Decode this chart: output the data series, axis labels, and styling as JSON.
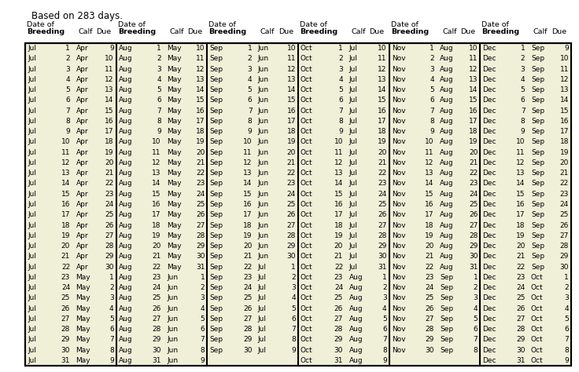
{
  "title": "Based on 283 days.",
  "bg_color": "#ffffff",
  "table_bg": "#f0f0d8",
  "border_color": "#000000",
  "text_color": "#000000",
  "font_size": 6.5,
  "header_font_size": 6.8,
  "title_font_size": 8.5,
  "sections": [
    {
      "breeding_month": "Jul",
      "rows": [
        [
          "Jul",
          "1",
          "Apr",
          "9"
        ],
        [
          "Jul",
          "2",
          "Apr",
          "10"
        ],
        [
          "Jul",
          "3",
          "Apr",
          "11"
        ],
        [
          "Jul",
          "4",
          "Apr",
          "12"
        ],
        [
          "Jul",
          "5",
          "Apr",
          "13"
        ],
        [
          "Jul",
          "6",
          "Apr",
          "14"
        ],
        [
          "Jul",
          "7",
          "Apr",
          "15"
        ],
        [
          "Jul",
          "8",
          "Apr",
          "16"
        ],
        [
          "Jul",
          "9",
          "Apr",
          "17"
        ],
        [
          "Jul",
          "10",
          "Apr",
          "18"
        ],
        [
          "Jul",
          "11",
          "Apr",
          "19"
        ],
        [
          "Jul",
          "12",
          "Apr",
          "20"
        ],
        [
          "Jul",
          "13",
          "Apr",
          "21"
        ],
        [
          "Jul",
          "14",
          "Apr",
          "22"
        ],
        [
          "Jul",
          "15",
          "Apr",
          "23"
        ],
        [
          "Jul",
          "16",
          "Apr",
          "24"
        ],
        [
          "Jul",
          "17",
          "Apr",
          "25"
        ],
        [
          "Jul",
          "18",
          "Apr",
          "26"
        ],
        [
          "Jul",
          "19",
          "Apr",
          "27"
        ],
        [
          "Jul",
          "20",
          "Apr",
          "28"
        ],
        [
          "Jul",
          "21",
          "Apr",
          "29"
        ],
        [
          "Jul",
          "22",
          "Apr",
          "30"
        ],
        [
          "Jul",
          "23",
          "May",
          "1"
        ],
        [
          "Jul",
          "24",
          "May",
          "2"
        ],
        [
          "Jul",
          "25",
          "May",
          "3"
        ],
        [
          "Jul",
          "26",
          "May",
          "4"
        ],
        [
          "Jul",
          "27",
          "May",
          "5"
        ],
        [
          "Jul",
          "28",
          "May",
          "6"
        ],
        [
          "Jul",
          "29",
          "May",
          "7"
        ],
        [
          "Jul",
          "30",
          "May",
          "8"
        ],
        [
          "Jul",
          "31",
          "May",
          "9"
        ]
      ]
    },
    {
      "breeding_month": "Aug",
      "rows": [
        [
          "Aug",
          "1",
          "May",
          "10"
        ],
        [
          "Aug",
          "2",
          "May",
          "11"
        ],
        [
          "Aug",
          "3",
          "May",
          "12"
        ],
        [
          "Aug",
          "4",
          "May",
          "13"
        ],
        [
          "Aug",
          "5",
          "May",
          "14"
        ],
        [
          "Aug",
          "6",
          "May",
          "15"
        ],
        [
          "Aug",
          "7",
          "May",
          "16"
        ],
        [
          "Aug",
          "8",
          "May",
          "17"
        ],
        [
          "Aug",
          "9",
          "May",
          "18"
        ],
        [
          "Aug",
          "10",
          "May",
          "19"
        ],
        [
          "Aug",
          "11",
          "May",
          "20"
        ],
        [
          "Aug",
          "12",
          "May",
          "21"
        ],
        [
          "Aug",
          "13",
          "May",
          "22"
        ],
        [
          "Aug",
          "14",
          "May",
          "23"
        ],
        [
          "Aug",
          "15",
          "May",
          "24"
        ],
        [
          "Aug",
          "16",
          "May",
          "25"
        ],
        [
          "Aug",
          "17",
          "May",
          "26"
        ],
        [
          "Aug",
          "18",
          "May",
          "27"
        ],
        [
          "Aug",
          "19",
          "May",
          "28"
        ],
        [
          "Aug",
          "20",
          "May",
          "29"
        ],
        [
          "Aug",
          "21",
          "May",
          "30"
        ],
        [
          "Aug",
          "22",
          "May",
          "31"
        ],
        [
          "Aug",
          "23",
          "Jun",
          "1"
        ],
        [
          "Aug",
          "24",
          "Jun",
          "2"
        ],
        [
          "Aug",
          "25",
          "Jun",
          "3"
        ],
        [
          "Aug",
          "26",
          "Jun",
          "4"
        ],
        [
          "Aug",
          "27",
          "Jun",
          "5"
        ],
        [
          "Aug",
          "28",
          "Jun",
          "6"
        ],
        [
          "Aug",
          "29",
          "Jun",
          "7"
        ],
        [
          "Aug",
          "30",
          "Jun",
          "8"
        ],
        [
          "Aug",
          "31",
          "Jun",
          "9"
        ]
      ]
    },
    {
      "breeding_month": "Sep",
      "rows": [
        [
          "Sep",
          "1",
          "Jun",
          "10"
        ],
        [
          "Sep",
          "2",
          "Jun",
          "11"
        ],
        [
          "Sep",
          "3",
          "Jun",
          "12"
        ],
        [
          "Sep",
          "4",
          "Jun",
          "13"
        ],
        [
          "Sep",
          "5",
          "Jun",
          "14"
        ],
        [
          "Sep",
          "6",
          "Jun",
          "15"
        ],
        [
          "Sep",
          "7",
          "Jun",
          "16"
        ],
        [
          "Sep",
          "8",
          "Jun",
          "17"
        ],
        [
          "Sep",
          "9",
          "Jun",
          "18"
        ],
        [
          "Sep",
          "10",
          "Jun",
          "19"
        ],
        [
          "Sep",
          "11",
          "Jun",
          "20"
        ],
        [
          "Sep",
          "12",
          "Jun",
          "21"
        ],
        [
          "Sep",
          "13",
          "Jun",
          "22"
        ],
        [
          "Sep",
          "14",
          "Jun",
          "23"
        ],
        [
          "Sep",
          "15",
          "Jun",
          "24"
        ],
        [
          "Sep",
          "16",
          "Jun",
          "25"
        ],
        [
          "Sep",
          "17",
          "Jun",
          "26"
        ],
        [
          "Sep",
          "18",
          "Jun",
          "27"
        ],
        [
          "Sep",
          "19",
          "Jun",
          "28"
        ],
        [
          "Sep",
          "20",
          "Jun",
          "29"
        ],
        [
          "Sep",
          "21",
          "Jun",
          "30"
        ],
        [
          "Sep",
          "22",
          "Jul",
          "1"
        ],
        [
          "Sep",
          "23",
          "Jul",
          "2"
        ],
        [
          "Sep",
          "24",
          "Jul",
          "3"
        ],
        [
          "Sep",
          "25",
          "Jul",
          "4"
        ],
        [
          "Sep",
          "26",
          "Jul",
          "5"
        ],
        [
          "Sep",
          "27",
          "Jul",
          "6"
        ],
        [
          "Sep",
          "28",
          "Jul",
          "7"
        ],
        [
          "Sep",
          "29",
          "Jul",
          "8"
        ],
        [
          "Sep",
          "30",
          "Jul",
          "9"
        ]
      ]
    },
    {
      "breeding_month": "Oct",
      "rows": [
        [
          "Oct",
          "1",
          "Jul",
          "10"
        ],
        [
          "Oct",
          "2",
          "Jul",
          "11"
        ],
        [
          "Oct",
          "3",
          "Jul",
          "12"
        ],
        [
          "Oct",
          "4",
          "Jul",
          "13"
        ],
        [
          "Oct",
          "5",
          "Jul",
          "14"
        ],
        [
          "Oct",
          "6",
          "Jul",
          "15"
        ],
        [
          "Oct",
          "7",
          "Jul",
          "16"
        ],
        [
          "Oct",
          "8",
          "Jul",
          "17"
        ],
        [
          "Oct",
          "9",
          "Jul",
          "18"
        ],
        [
          "Oct",
          "10",
          "Jul",
          "19"
        ],
        [
          "Oct",
          "11",
          "Jul",
          "20"
        ],
        [
          "Oct",
          "12",
          "Jul",
          "21"
        ],
        [
          "Oct",
          "13",
          "Jul",
          "22"
        ],
        [
          "Oct",
          "14",
          "Jul",
          "23"
        ],
        [
          "Oct",
          "15",
          "Jul",
          "24"
        ],
        [
          "Oct",
          "16",
          "Jul",
          "25"
        ],
        [
          "Oct",
          "17",
          "Jul",
          "26"
        ],
        [
          "Oct",
          "18",
          "Jul",
          "27"
        ],
        [
          "Oct",
          "19",
          "Jul",
          "28"
        ],
        [
          "Oct",
          "20",
          "Jul",
          "29"
        ],
        [
          "Oct",
          "21",
          "Jul",
          "30"
        ],
        [
          "Oct",
          "22",
          "Jul",
          "31"
        ],
        [
          "Oct",
          "23",
          "Aug",
          "1"
        ],
        [
          "Oct",
          "24",
          "Aug",
          "2"
        ],
        [
          "Oct",
          "25",
          "Aug",
          "3"
        ],
        [
          "Oct",
          "26",
          "Aug",
          "4"
        ],
        [
          "Oct",
          "27",
          "Aug",
          "5"
        ],
        [
          "Oct",
          "28",
          "Aug",
          "6"
        ],
        [
          "Oct",
          "29",
          "Aug",
          "7"
        ],
        [
          "Oct",
          "30",
          "Aug",
          "8"
        ],
        [
          "Oct",
          "31",
          "Aug",
          "9"
        ]
      ]
    },
    {
      "breeding_month": "Nov",
      "rows": [
        [
          "Nov",
          "1",
          "Aug",
          "10"
        ],
        [
          "Nov",
          "2",
          "Aug",
          "11"
        ],
        [
          "Nov",
          "3",
          "Aug",
          "12"
        ],
        [
          "Nov",
          "4",
          "Aug",
          "13"
        ],
        [
          "Nov",
          "5",
          "Aug",
          "14"
        ],
        [
          "Nov",
          "6",
          "Aug",
          "15"
        ],
        [
          "Nov",
          "7",
          "Aug",
          "16"
        ],
        [
          "Nov",
          "8",
          "Aug",
          "17"
        ],
        [
          "Nov",
          "9",
          "Aug",
          "18"
        ],
        [
          "Nov",
          "10",
          "Aug",
          "19"
        ],
        [
          "Nov",
          "11",
          "Aug",
          "20"
        ],
        [
          "Nov",
          "12",
          "Aug",
          "21"
        ],
        [
          "Nov",
          "13",
          "Aug",
          "22"
        ],
        [
          "Nov",
          "14",
          "Aug",
          "23"
        ],
        [
          "Nov",
          "15",
          "Aug",
          "24"
        ],
        [
          "Nov",
          "16",
          "Aug",
          "25"
        ],
        [
          "Nov",
          "17",
          "Aug",
          "26"
        ],
        [
          "Nov",
          "18",
          "Aug",
          "27"
        ],
        [
          "Nov",
          "19",
          "Aug",
          "28"
        ],
        [
          "Nov",
          "20",
          "Aug",
          "29"
        ],
        [
          "Nov",
          "21",
          "Aug",
          "30"
        ],
        [
          "Nov",
          "22",
          "Aug",
          "31"
        ],
        [
          "Nov",
          "23",
          "Sep",
          "1"
        ],
        [
          "Nov",
          "24",
          "Sep",
          "2"
        ],
        [
          "Nov",
          "25",
          "Sep",
          "3"
        ],
        [
          "Nov",
          "26",
          "Sep",
          "4"
        ],
        [
          "Nov",
          "27",
          "Sep",
          "5"
        ],
        [
          "Nov",
          "28",
          "Sep",
          "6"
        ],
        [
          "Nov",
          "29",
          "Sep",
          "7"
        ],
        [
          "Nov",
          "30",
          "Sep",
          "8"
        ]
      ]
    },
    {
      "breeding_month": "Dec",
      "rows": [
        [
          "Dec",
          "1",
          "Sep",
          "9"
        ],
        [
          "Dec",
          "2",
          "Sep",
          "10"
        ],
        [
          "Dec",
          "3",
          "Sep",
          "11"
        ],
        [
          "Dec",
          "4",
          "Sep",
          "12"
        ],
        [
          "Dec",
          "5",
          "Sep",
          "13"
        ],
        [
          "Dec",
          "6",
          "Sep",
          "14"
        ],
        [
          "Dec",
          "7",
          "Sep",
          "15"
        ],
        [
          "Dec",
          "8",
          "Sep",
          "16"
        ],
        [
          "Dec",
          "9",
          "Sep",
          "17"
        ],
        [
          "Dec",
          "10",
          "Sep",
          "18"
        ],
        [
          "Dec",
          "11",
          "Sep",
          "19"
        ],
        [
          "Dec",
          "12",
          "Sep",
          "20"
        ],
        [
          "Dec",
          "13",
          "Sep",
          "21"
        ],
        [
          "Dec",
          "14",
          "Sep",
          "22"
        ],
        [
          "Dec",
          "15",
          "Sep",
          "23"
        ],
        [
          "Dec",
          "16",
          "Sep",
          "24"
        ],
        [
          "Dec",
          "17",
          "Sep",
          "25"
        ],
        [
          "Dec",
          "18",
          "Sep",
          "26"
        ],
        [
          "Dec",
          "19",
          "Sep",
          "27"
        ],
        [
          "Dec",
          "20",
          "Sep",
          "28"
        ],
        [
          "Dec",
          "21",
          "Sep",
          "29"
        ],
        [
          "Dec",
          "22",
          "Sep",
          "30"
        ],
        [
          "Dec",
          "23",
          "Oct",
          "1"
        ],
        [
          "Dec",
          "24",
          "Oct",
          "2"
        ],
        [
          "Dec",
          "25",
          "Oct",
          "3"
        ],
        [
          "Dec",
          "26",
          "Oct",
          "4"
        ],
        [
          "Dec",
          "27",
          "Oct",
          "5"
        ],
        [
          "Dec",
          "28",
          "Oct",
          "6"
        ],
        [
          "Dec",
          "29",
          "Oct",
          "7"
        ],
        [
          "Dec",
          "30",
          "Oct",
          "8"
        ],
        [
          "Dec",
          "31",
          "Oct",
          "9"
        ]
      ]
    }
  ]
}
